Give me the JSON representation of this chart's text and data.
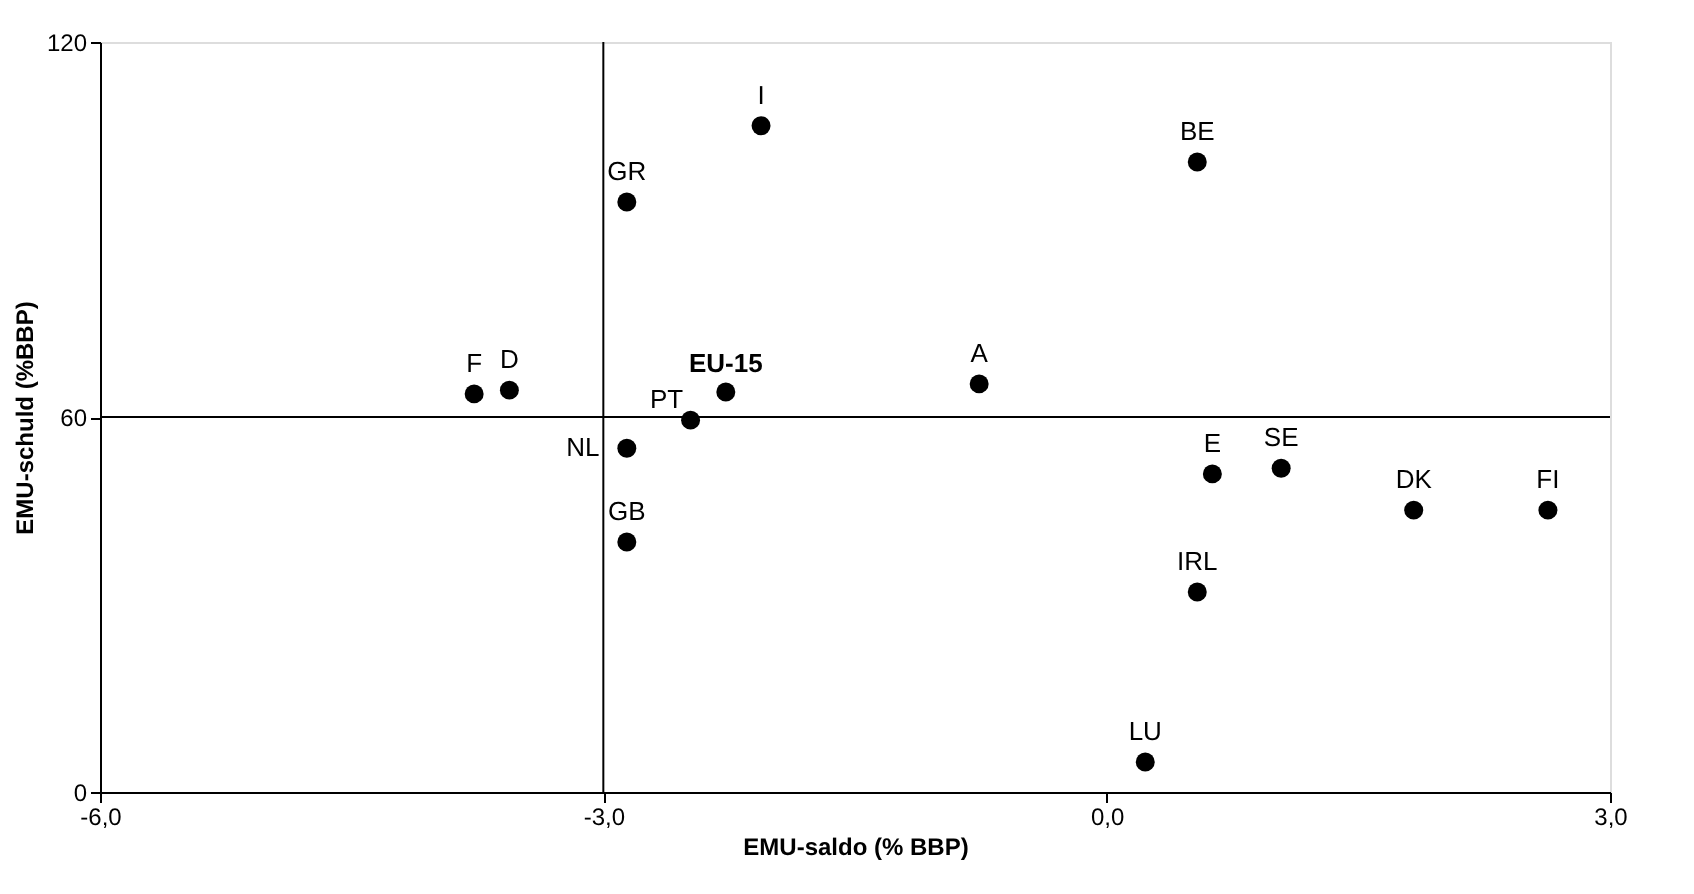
{
  "chart_data": {
    "type": "scatter",
    "xlabel": "EMU-saldo (% BBP)",
    "ylabel": "EMU-schuld (%BBP)",
    "x": [
      -2.86,
      -2.06,
      0.54,
      -3.77,
      -3.56,
      -2.27,
      -2.48,
      -0.76,
      -2.86,
      -2.86,
      0.63,
      1.04,
      1.83,
      2.63,
      0.54,
      0.23
    ],
    "series": [
      {
        "color": "#000000",
        "values": [
          94.4,
          106.6,
          100.8,
          63.7,
          64.3,
          64,
          59.5,
          65.3,
          55,
          40,
          50.9,
          51.8,
          45.1,
          45.1,
          32,
          4.8
        ]
      }
    ],
    "annotations": [
      {
        "text": "GR",
        "x": -2.86,
        "y": 94.4
      },
      {
        "text": "I",
        "x": -2.06,
        "y": 106.6
      },
      {
        "text": "BE",
        "x": 0.54,
        "y": 100.8
      },
      {
        "text": "F",
        "x": -3.77,
        "y": 63.7
      },
      {
        "text": "D",
        "x": -3.56,
        "y": 64.3
      },
      {
        "text": "EU-15",
        "x": -2.27,
        "y": 64
      },
      {
        "text": "PT",
        "x": -2.48,
        "y": 59.5
      },
      {
        "text": "A",
        "x": -0.76,
        "y": 65.3
      },
      {
        "text": "NL",
        "x": -2.86,
        "y": 55
      },
      {
        "text": "GB",
        "x": -2.86,
        "y": 40
      },
      {
        "text": "E",
        "x": 0.63,
        "y": 50.9
      },
      {
        "text": "SE",
        "x": 1.04,
        "y": 51.8
      },
      {
        "text": "DK",
        "x": 1.83,
        "y": 45.1
      },
      {
        "text": "FI",
        "x": 2.63,
        "y": 45.1
      },
      {
        "text": "IRL",
        "x": 0.54,
        "y": 32
      },
      {
        "text": "LU",
        "x": 0.23,
        "y": 4.8
      }
    ],
    "xlim": [
      -6,
      3
    ],
    "xticks": [
      {
        "value": -6,
        "label": "-6,0"
      },
      {
        "value": -3,
        "label": "-3,0"
      },
      {
        "value": 0,
        "label": "0,0"
      },
      {
        "value": 3,
        "label": "3,0"
      }
    ],
    "ylim": [
      0,
      120
    ],
    "yticks": [
      0,
      60,
      120
    ],
    "ref_lines": [
      {
        "axis": "x",
        "value": -3
      },
      {
        "axis": "y",
        "value": 60
      }
    ],
    "grid": false
  }
}
